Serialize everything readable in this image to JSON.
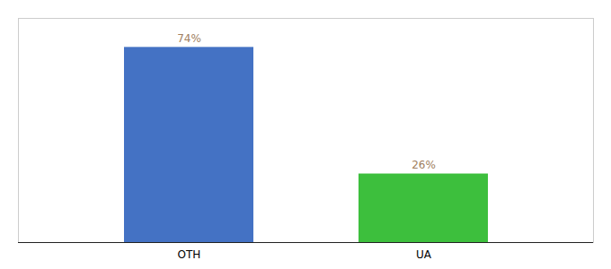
{
  "chart_data": {
    "type": "bar",
    "categories": [
      "OTH",
      "UA"
    ],
    "values": [
      74,
      26
    ],
    "colors": [
      "#4472c4",
      "#3dbf3d"
    ],
    "ylim": [
      0,
      85
    ],
    "tick_labels": "x",
    "data_labels": true,
    "value_labels": [
      "74%",
      "26%"
    ]
  }
}
